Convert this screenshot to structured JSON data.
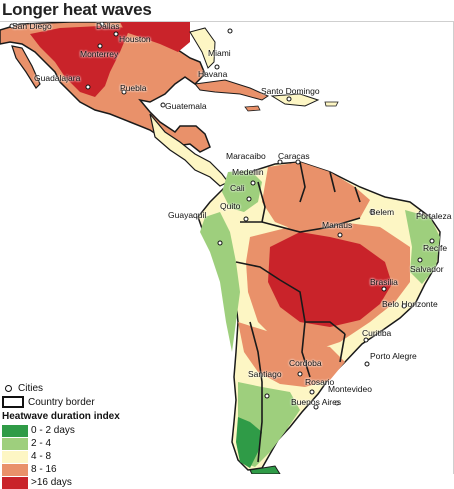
{
  "title": "Longer heat waves",
  "colors": {
    "water": "#ffffff",
    "border": "#1a1a1a",
    "class_0_2": "#2f9b47",
    "class_2_4": "#9ecf7d",
    "class_4_8": "#fdf6c4",
    "class_8_16": "#e9916a",
    "class_16_plus": "#c9232a"
  },
  "legend": {
    "cities_label": "Cities",
    "border_label": "Country border",
    "index_title": "Heatwave duration index",
    "classes": [
      {
        "label": "0 - 2 days",
        "color": "#2f9b47"
      },
      {
        "label": "2 - 4",
        "color": "#9ecf7d"
      },
      {
        "label": "4 - 8",
        "color": "#fdf6c4"
      },
      {
        "label": "8 - 16",
        "color": "#e9916a"
      },
      {
        "label": ">16 days",
        "color": "#c9232a"
      }
    ]
  },
  "cities": [
    "San Diego",
    "Dallas",
    "Houston",
    "Monterrey",
    "Miami",
    "Havana",
    "Guadalajara",
    "Puebla",
    "Santo Domingo",
    "Guatemala",
    "Maracaibo",
    "Caracas",
    "Medellin",
    "Cali",
    "Quito",
    "Guayaquil",
    "Manaus",
    "Belem",
    "Fortaleza",
    "Recife",
    "Salvador",
    "Brasilia",
    "Belo Horizonte",
    "Curitiba",
    "Porto Alegre",
    "Cordoba",
    "Santiago",
    "Rosario",
    "Montevideo",
    "Buenos Aires"
  ]
}
